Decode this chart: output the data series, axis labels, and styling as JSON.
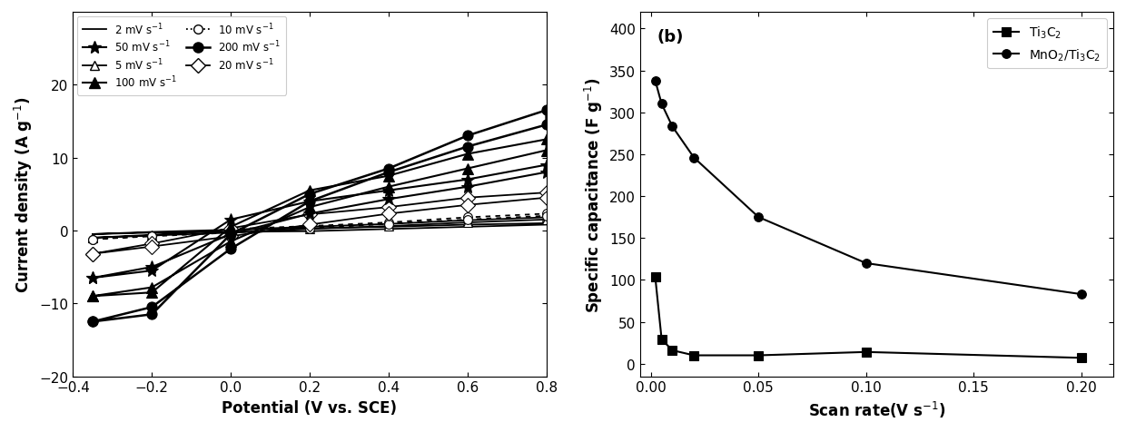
{
  "panel_a": {
    "xlabel": "Potential (V vs. SCE)",
    "ylabel": "Current density (A g$^{-1}$)",
    "xlim": [
      -0.4,
      0.8
    ],
    "ylim": [
      -20,
      30
    ],
    "yticks": [
      -20,
      -10,
      0,
      10,
      20
    ],
    "xticks": [
      -0.4,
      -0.2,
      0.0,
      0.2,
      0.4,
      0.6,
      0.8
    ],
    "curves": [
      {
        "label": "2 mV s$^{-1}$",
        "linestyle": "-",
        "marker": null,
        "color": "black",
        "markersize": 0,
        "markerfacecolor": "white",
        "linewidth": 1.3,
        "x": [
          -0.35,
          -0.2,
          0.0,
          0.2,
          0.4,
          0.6,
          0.8,
          0.8,
          0.6,
          0.4,
          0.2,
          0.0,
          -0.2,
          -0.35
        ],
        "y": [
          -0.5,
          -0.2,
          0.1,
          0.3,
          0.5,
          0.8,
          1.0,
          0.8,
          0.5,
          0.2,
          -0.1,
          -0.2,
          -0.3,
          -0.5
        ]
      },
      {
        "label": "5 mV s$^{-1}$",
        "linestyle": "-",
        "marker": "^",
        "color": "black",
        "markersize": 7,
        "markerfacecolor": "white",
        "linewidth": 1.3,
        "x": [
          -0.35,
          -0.2,
          0.0,
          0.2,
          0.4,
          0.6,
          0.8,
          0.8,
          0.6,
          0.4,
          0.2,
          0.0,
          -0.2,
          -0.35
        ],
        "y": [
          -1.0,
          -0.6,
          0.1,
          0.5,
          0.9,
          1.4,
          1.8,
          1.5,
          1.1,
          0.6,
          0.2,
          -0.3,
          -0.7,
          -1.0
        ]
      },
      {
        "label": "10 mV s$^{-1}$",
        "linestyle": "-",
        "marker": "o",
        "color": "black",
        "markersize": 7,
        "markerfacecolor": "white",
        "linewidth": 1.3,
        "dotted": true,
        "x": [
          -0.35,
          -0.2,
          0.0,
          0.2,
          0.4,
          0.6,
          0.8,
          0.8,
          0.6,
          0.4,
          0.2,
          0.0,
          -0.2,
          -0.35
        ],
        "y": [
          -1.2,
          -0.7,
          0.2,
          0.6,
          1.1,
          1.8,
          2.3,
          2.0,
          1.5,
          0.9,
          0.3,
          -0.3,
          -0.8,
          -1.2
        ]
      },
      {
        "label": "20 mV s$^{-1}$",
        "linestyle": "-",
        "marker": "D",
        "color": "black",
        "markersize": 8,
        "markerfacecolor": "white",
        "linewidth": 1.3,
        "x": [
          -0.35,
          -0.2,
          0.0,
          0.2,
          0.4,
          0.6,
          0.8,
          0.8,
          0.6,
          0.4,
          0.2,
          0.0,
          -0.2,
          -0.35
        ],
        "y": [
          -3.2,
          -1.8,
          0.3,
          2.2,
          3.2,
          4.5,
          5.2,
          4.5,
          3.5,
          2.3,
          0.8,
          -0.8,
          -2.2,
          -3.2
        ]
      },
      {
        "label": "50 mV s$^{-1}$",
        "linestyle": "-",
        "marker": "*",
        "color": "black",
        "markersize": 10,
        "markerfacecolor": "black",
        "linewidth": 1.5,
        "x": [
          -0.35,
          -0.2,
          0.0,
          0.2,
          0.4,
          0.6,
          0.8,
          0.8,
          0.6,
          0.4,
          0.2,
          0.0,
          -0.2,
          -0.35
        ],
        "y": [
          -6.5,
          -5.5,
          1.5,
          4.0,
          5.5,
          7.0,
          9.0,
          8.0,
          6.0,
          4.3,
          2.3,
          -0.5,
          -5.0,
          -6.5
        ]
      },
      {
        "label": "100 mV s$^{-1}$",
        "linestyle": "-",
        "marker": "^",
        "color": "black",
        "markersize": 8,
        "markerfacecolor": "black",
        "linewidth": 1.5,
        "x": [
          -0.35,
          -0.2,
          0.0,
          0.2,
          0.4,
          0.6,
          0.8,
          0.8,
          0.6,
          0.4,
          0.2,
          0.0,
          -0.2,
          -0.35
        ],
        "y": [
          -9.0,
          -8.5,
          0.5,
          5.5,
          7.5,
          10.5,
          12.5,
          11.0,
          8.5,
          6.0,
          3.2,
          -1.5,
          -7.8,
          -9.0
        ]
      },
      {
        "label": "200 mV s$^{-1}$",
        "linestyle": "-",
        "marker": "o",
        "color": "black",
        "markersize": 8,
        "markerfacecolor": "black",
        "linewidth": 1.8,
        "x": [
          -0.35,
          -0.2,
          0.0,
          0.2,
          0.4,
          0.6,
          0.8,
          0.8,
          0.6,
          0.4,
          0.2,
          0.0,
          -0.2,
          -0.35
        ],
        "y": [
          -12.5,
          -11.5,
          -0.5,
          5.0,
          8.5,
          13.0,
          16.5,
          14.5,
          11.5,
          8.0,
          4.0,
          -2.5,
          -10.5,
          -12.5
        ]
      }
    ],
    "legend_left": [
      {
        "label": "2 mV s$^{-1}$",
        "linestyle": "-",
        "marker": null,
        "markerfacecolor": "white",
        "lw": 1.3,
        "ms": 0
      },
      {
        "label": "5 mV s$^{-1}$",
        "linestyle": "-",
        "marker": "^",
        "markerfacecolor": "white",
        "lw": 1.3,
        "ms": 7
      },
      {
        "label": "10 mV s$^{-1}$",
        "linestyle": ":",
        "marker": "o",
        "markerfacecolor": "white",
        "lw": 1.3,
        "ms": 7
      },
      {
        "label": "20 mV s$^{-1}$",
        "linestyle": "-",
        "marker": "D",
        "markerfacecolor": "white",
        "lw": 1.3,
        "ms": 8
      }
    ],
    "legend_right": [
      {
        "label": "50 mV s$^{-1}$",
        "linestyle": "-",
        "marker": "*",
        "markerfacecolor": "black",
        "lw": 1.5,
        "ms": 10
      },
      {
        "label": "100 mV s$^{-1}$",
        "linestyle": "-",
        "marker": "^",
        "markerfacecolor": "black",
        "lw": 1.5,
        "ms": 8
      },
      {
        "label": "200 mV s$^{-1}$",
        "linestyle": "-",
        "marker": "o",
        "markerfacecolor": "black",
        "lw": 1.8,
        "ms": 8
      }
    ]
  },
  "panel_b": {
    "xlabel": "Scan rate(V s$^{-1}$)",
    "ylabel": "Specific capacitance (F g$^{-1}$)",
    "xlim": [
      -0.005,
      0.215
    ],
    "ylim": [
      -15,
      420
    ],
    "yticks": [
      0,
      50,
      100,
      150,
      200,
      250,
      300,
      350,
      400
    ],
    "xticks": [
      0.0,
      0.05,
      0.1,
      0.15,
      0.2
    ],
    "series": [
      {
        "label": "Ti$_3$C$_2$",
        "marker": "s",
        "markersize": 7,
        "color": "black",
        "markerfacecolor": "black",
        "linewidth": 1.5,
        "x": [
          0.002,
          0.005,
          0.01,
          0.02,
          0.05,
          0.1,
          0.2
        ],
        "y": [
          104,
          29,
          16,
          10,
          10,
          14,
          7
        ]
      },
      {
        "label": "MnO$_2$/Ti$_3$C$_2$",
        "marker": "o",
        "markersize": 7,
        "color": "black",
        "markerfacecolor": "black",
        "linewidth": 1.5,
        "x": [
          0.002,
          0.005,
          0.01,
          0.02,
          0.05,
          0.1,
          0.2
        ],
        "y": [
          338,
          310,
          283,
          246,
          175,
          120,
          83
        ]
      }
    ]
  }
}
